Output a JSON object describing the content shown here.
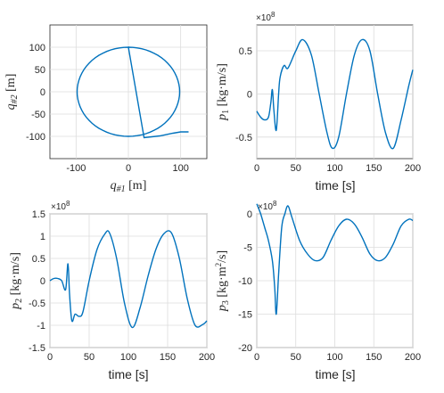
{
  "line_color": "#0072BD",
  "chart_data": [
    {
      "type": "line",
      "id": "trajectory",
      "xlabel": "q_{#1} [m]",
      "ylabel": "q_{#2} [m]",
      "xlim": [
        -150,
        150
      ],
      "ylim": [
        -150,
        150
      ],
      "xticks": [
        "-100",
        "0",
        "100"
      ],
      "yticks": [
        "100",
        "50",
        "0",
        "-50",
        "-100"
      ],
      "grid": true,
      "series": [
        {
          "note_shape": "closed orbit of radius about 100 around the origin, with an outgoing tail to the right",
          "x": [
            0,
            50,
            86.6,
            100,
            86.6,
            50,
            0,
            -50,
            -86.6,
            -100,
            -86.6,
            -50,
            0,
            30,
            60,
            85,
            100,
            115
          ],
          "y": [
            100,
            86.6,
            50,
            0,
            -50,
            -86.6,
            -100,
            -86.6,
            -50,
            0,
            50,
            86.6,
            100,
            -103,
            -99,
            -93,
            -90,
            -90
          ]
        }
      ]
    },
    {
      "type": "line",
      "id": "p1",
      "xlabel": "time [s]",
      "ylabel": "p_1 [kg·m/s]",
      "exponent": "×10^8",
      "xlim": [
        0,
        200
      ],
      "ylim": [
        -0.75,
        0.8
      ],
      "xticks": [
        "0",
        "50",
        "100",
        "150",
        "200"
      ],
      "yticks": [
        "0.5",
        "0",
        "-0.5"
      ],
      "grid": true,
      "series": [
        {
          "x": [
            0,
            5,
            10,
            15,
            18,
            20,
            22,
            25,
            28,
            30,
            35,
            40,
            50,
            59,
            70,
            80,
            90,
            97,
            105,
            115,
            125,
            135,
            145,
            155,
            165,
            175,
            185,
            195,
            200
          ],
          "y": [
            -0.2,
            -0.27,
            -0.3,
            -0.27,
            -0.1,
            0.05,
            -0.2,
            -0.42,
            0.0,
            0.2,
            0.33,
            0.3,
            0.5,
            0.63,
            0.45,
            0.0,
            -0.45,
            -0.63,
            -0.5,
            0.0,
            0.45,
            0.63,
            0.5,
            0.0,
            -0.45,
            -0.63,
            -0.3,
            0.1,
            0.28
          ]
        }
      ]
    },
    {
      "type": "line",
      "id": "p2",
      "xlabel": "time [s]",
      "ylabel": "p_2 [kg·m/s]",
      "exponent": "×10^8",
      "xlim": [
        0,
        200
      ],
      "ylim": [
        -1.5,
        1.5
      ],
      "xticks": [
        "0",
        "50",
        "100",
        "150",
        "200"
      ],
      "yticks": [
        "1.5",
        "1",
        "0.5",
        "0",
        "-0.5",
        "-1",
        "-1.5"
      ],
      "grid": true,
      "series": [
        {
          "x": [
            0,
            5,
            10,
            15,
            20,
            23,
            25,
            28,
            32,
            37,
            42,
            50,
            60,
            70,
            76,
            85,
            95,
            105,
            115,
            125,
            135,
            145,
            155,
            165,
            175,
            185,
            195,
            200
          ],
          "y": [
            0.0,
            0.05,
            0.05,
            0.0,
            -0.2,
            0.38,
            -0.3,
            -0.9,
            -0.75,
            -0.8,
            -0.7,
            0.0,
            0.7,
            1.05,
            1.07,
            0.5,
            -0.5,
            -1.05,
            -0.6,
            0.1,
            0.7,
            1.05,
            1.07,
            0.5,
            -0.4,
            -1.0,
            -0.98,
            -0.9
          ]
        }
      ]
    },
    {
      "type": "line",
      "id": "p3",
      "xlabel": "time [s]",
      "ylabel": "p_3 [kg·m²/s]",
      "exponent": "×10^8",
      "xlim": [
        0,
        200
      ],
      "ylim": [
        -20,
        0
      ],
      "xticks": [
        "0",
        "50",
        "100",
        "150",
        "200"
      ],
      "yticks": [
        "0",
        "-5",
        "-10",
        "-15",
        "-20"
      ],
      "grid": true,
      "series": [
        {
          "x": [
            0,
            5,
            10,
            15,
            20,
            23,
            25,
            28,
            32,
            36,
            40,
            45,
            55,
            65,
            75,
            85,
            95,
            105,
            115,
            125,
            135,
            145,
            155,
            165,
            175,
            185,
            195,
            200
          ],
          "y": [
            1.5,
            0.0,
            -2.0,
            -4.0,
            -7.0,
            -11.0,
            -15.0,
            -9.0,
            -2.0,
            0.0,
            1.2,
            -0.5,
            -4.0,
            -6.0,
            -7.0,
            -6.5,
            -4.0,
            -1.8,
            -0.8,
            -1.5,
            -3.5,
            -6.0,
            -7.0,
            -6.5,
            -4.5,
            -1.8,
            -0.8,
            -1.0
          ]
        }
      ]
    }
  ]
}
